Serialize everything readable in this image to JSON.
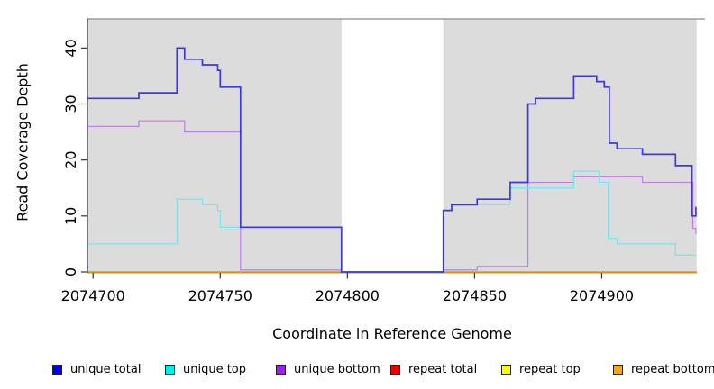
{
  "chart_data": {
    "type": "line",
    "subtype": "step-coverage-plot",
    "title": "",
    "xlabel": "Coordinate in Reference Genome",
    "ylabel": "Read Coverage Depth",
    "xlim": [
      2074697.8,
      2074937.3
    ],
    "ylim": [
      0,
      45.2
    ],
    "x_end": 2074937.3,
    "x_ticks": [
      2074700,
      2074750,
      2074800,
      2074850,
      2074900
    ],
    "x_tick_labels": [
      "2074700",
      "2074750",
      "2074800",
      "2074850",
      "2074900"
    ],
    "y_ticks": [
      0,
      10,
      20,
      30,
      40
    ],
    "y_tick_labels": [
      "0",
      "10",
      "20",
      "30",
      "40"
    ],
    "grid": false,
    "legend_position": "bottom-horizontal",
    "plot_bg": "#dcdcdc",
    "page_bg": "#ffffff",
    "mask_region": {
      "x_start": 2074797.7,
      "x_end": 2074837.7,
      "color": "#ffffff"
    },
    "series": [
      {
        "name": "unique total",
        "legend_color": "#0000ee",
        "line_color": "#3a3adf",
        "steps": [
          [
            2074698,
            31
          ],
          [
            2074718,
            32
          ],
          [
            2074733,
            40
          ],
          [
            2074736,
            38
          ],
          [
            2074743,
            37
          ],
          [
            2074749,
            36
          ],
          [
            2074750,
            33
          ],
          [
            2074758,
            8
          ],
          [
            2074797.7,
            0
          ],
          [
            2074837.7,
            11
          ],
          [
            2074841,
            12
          ],
          [
            2074851,
            13
          ],
          [
            2074864,
            16
          ],
          [
            2074871,
            30
          ],
          [
            2074874,
            31
          ],
          [
            2074889,
            35
          ],
          [
            2074898,
            34
          ],
          [
            2074901,
            33
          ],
          [
            2074903,
            23
          ],
          [
            2074906,
            22
          ],
          [
            2074916,
            21
          ],
          [
            2074929,
            19
          ],
          [
            2074935.5,
            10
          ],
          [
            2074937,
            11.5
          ]
        ]
      },
      {
        "name": "unique top",
        "legend_color": "#00eeee",
        "line_color": "#7ae6f0",
        "steps": [
          [
            2074698,
            5
          ],
          [
            2074733,
            13
          ],
          [
            2074743,
            12
          ],
          [
            2074749,
            11
          ],
          [
            2074750,
            8
          ],
          [
            2074797.7,
            0
          ],
          [
            2074837.7,
            11
          ],
          [
            2074841,
            12
          ],
          [
            2074864,
            15
          ],
          [
            2074889,
            18
          ],
          [
            2074899,
            16
          ],
          [
            2074902.5,
            6
          ],
          [
            2074906,
            5
          ],
          [
            2074929,
            3
          ]
        ]
      },
      {
        "name": "unique bottom",
        "legend_color": "#a020f0",
        "line_color": "#c183e8",
        "steps": [
          [
            2074698,
            26
          ],
          [
            2074718,
            27
          ],
          [
            2074736,
            25
          ],
          [
            2074758,
            0.35
          ],
          [
            2074797.7,
            0
          ],
          [
            2074837.7,
            0.35
          ],
          [
            2074851,
            1
          ],
          [
            2074871,
            16
          ],
          [
            2074889,
            17
          ],
          [
            2074916,
            16
          ],
          [
            2074935.8,
            7.8
          ],
          [
            2074937,
            6.9
          ]
        ]
      },
      {
        "name": "repeat total",
        "legend_color": "#ee0000",
        "line_color": "#dd2222",
        "steps": [
          [
            2074698,
            0
          ]
        ]
      },
      {
        "name": "repeat top",
        "legend_color": "#ffff00",
        "line_color": "#f2f20a",
        "steps": [
          [
            2074698,
            0
          ]
        ]
      },
      {
        "name": "repeat bottom",
        "legend_color": "#ffa500",
        "line_color": "#ff9d00",
        "steps": [
          [
            2074698,
            0
          ]
        ]
      }
    ]
  }
}
